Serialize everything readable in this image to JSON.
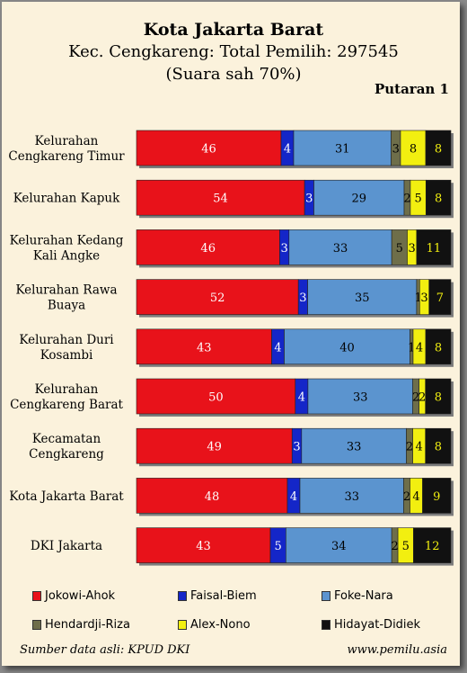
{
  "header": {
    "title": "Kota Jakarta Barat",
    "subtitle": "Kec. Cengkareng: Total Pemilih: 297545",
    "subtitle2": "(Suara sah 70%)",
    "round_label": "Putaran 1"
  },
  "footer": {
    "source": "Sumber data asli: KPUD DKI",
    "website": "www.pemilu.asia"
  },
  "chart_data": {
    "type": "bar",
    "orientation": "horizontal-stacked-100",
    "categories": [
      [
        "Kelurahan",
        "Cengkareng Timur"
      ],
      [
        "Kelurahan Kapuk"
      ],
      [
        "Kelurahan Kedang",
        "Kali Angke"
      ],
      [
        "Kelurahan Rawa",
        "Buaya"
      ],
      [
        "Kelurahan Duri",
        "Kosambi"
      ],
      [
        "Kelurahan",
        "Cengkareng Barat"
      ],
      [
        "Kecamatan",
        "Cengkareng"
      ],
      [
        "Kota Jakarta Barat"
      ],
      [
        "DKI Jakarta"
      ]
    ],
    "series": [
      {
        "name": "Jokowi-Ahok",
        "color": "#e8121a",
        "label_color": "#ffffff",
        "values": [
          46,
          54,
          46,
          52,
          43,
          50,
          49,
          48,
          43
        ]
      },
      {
        "name": "Faisal-Biem",
        "color": "#1426c8",
        "label_color": "#ffffff",
        "values": [
          4,
          3,
          3,
          3,
          4,
          4,
          3,
          4,
          5
        ]
      },
      {
        "name": "Foke-Nara",
        "color": "#5b94cf",
        "label_color": "#000000",
        "values": [
          31,
          29,
          33,
          35,
          40,
          33,
          33,
          33,
          34
        ]
      },
      {
        "name": "Hendardji-Riza",
        "color": "#6e6e4a",
        "label_color": "#000000",
        "values": [
          3,
          2,
          5,
          1,
          1,
          2,
          2,
          2,
          2
        ]
      },
      {
        "name": "Alex-Nono",
        "color": "#f2ef10",
        "label_color": "#000000",
        "values": [
          8,
          5,
          3,
          3,
          4,
          2,
          4,
          4,
          5
        ]
      },
      {
        "name": "Hidayat-Didiek",
        "color": "#111111",
        "label_color": "#f2ef10",
        "values": [
          8,
          8,
          11,
          7,
          8,
          8,
          8,
          9,
          12
        ]
      }
    ],
    "legend_position": "bottom"
  }
}
